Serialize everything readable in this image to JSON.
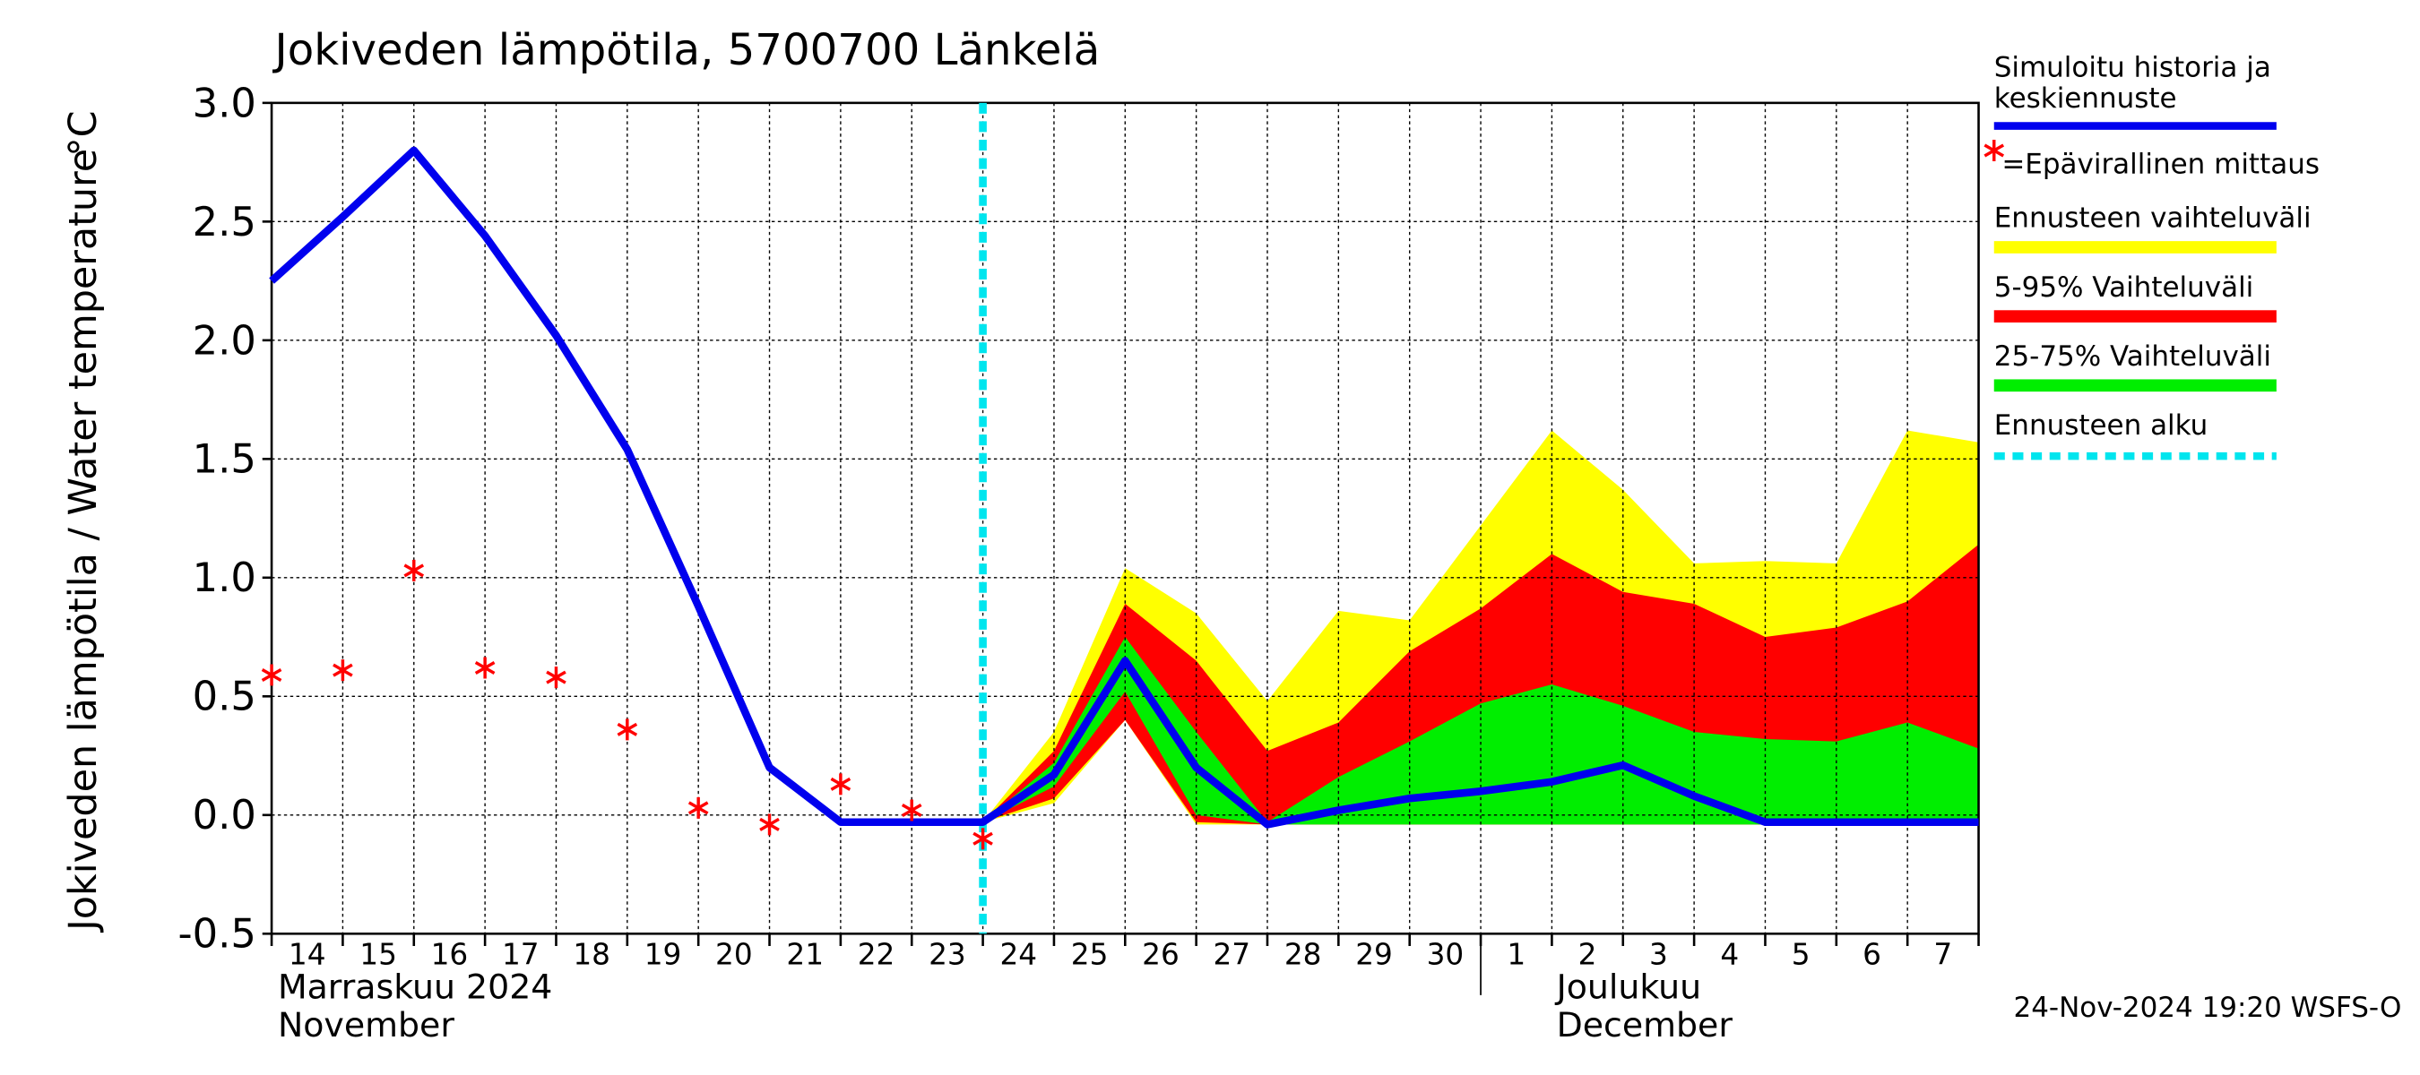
{
  "chart_data": {
    "type": "line",
    "title": "Jokiveden lämpötila, 5700700 Länkelä",
    "y_label": "Jokiveden lämpötila / Water temperature",
    "y_unit": "°C",
    "categories": [
      "14",
      "15",
      "16",
      "17",
      "18",
      "19",
      "20",
      "21",
      "22",
      "23",
      "24",
      "25",
      "26",
      "27",
      "28",
      "29",
      "30",
      "1",
      "2",
      "3",
      "4",
      "5",
      "6",
      "7",
      null
    ],
    "months": [
      {
        "at": "14",
        "lines": [
          "Marraskuu 2024",
          "November"
        ]
      },
      {
        "at": "1",
        "lines": [
          "Joulukuu",
          "December"
        ]
      }
    ],
    "ylim": [
      -0.5,
      3.0
    ],
    "yticks": [
      -0.5,
      {
        "value": 0,
        "label": "0.0"
      },
      0.5,
      {
        "value": 1,
        "label": "1.0"
      },
      1.5,
      {
        "value": 2,
        "label": "2.0"
      },
      2.5,
      {
        "value": 3,
        "label": "3.0"
      }
    ],
    "grid": true,
    "bands": [
      {
        "name": "Ennusteen vaihteluväli",
        "color": "#ffff00",
        "upper": [
          null,
          null,
          null,
          null,
          null,
          null,
          null,
          null,
          null,
          null,
          -0.03,
          0.35,
          1.04,
          0.85,
          0.48,
          0.86,
          0.82,
          1.22,
          1.62,
          1.37,
          1.06,
          1.07,
          1.06,
          1.62,
          1.57
        ],
        "lower": [
          null,
          null,
          null,
          null,
          null,
          null,
          null,
          null,
          null,
          null,
          -0.03,
          0.05,
          0.4,
          -0.04,
          -0.04,
          -0.04,
          -0.04,
          -0.04,
          -0.04,
          -0.04,
          -0.04,
          -0.04,
          -0.04,
          -0.04,
          -0.04
        ]
      },
      {
        "name": "5-95% Vaihteluväli",
        "color": "#ff0000",
        "upper": [
          null,
          null,
          null,
          null,
          null,
          null,
          null,
          null,
          null,
          null,
          -0.03,
          0.27,
          0.89,
          0.65,
          0.27,
          0.39,
          0.69,
          0.87,
          1.1,
          0.94,
          0.89,
          0.75,
          0.79,
          0.9,
          1.14
        ],
        "lower": [
          null,
          null,
          null,
          null,
          null,
          null,
          null,
          null,
          null,
          null,
          -0.03,
          0.07,
          0.4,
          -0.03,
          -0.04,
          -0.04,
          -0.04,
          -0.04,
          -0.04,
          -0.04,
          -0.04,
          -0.04,
          -0.04,
          -0.04,
          -0.04
        ]
      },
      {
        "name": "25-75% Vaihteluväli",
        "color": "#00ee00",
        "upper": [
          null,
          null,
          null,
          null,
          null,
          null,
          null,
          null,
          null,
          null,
          -0.03,
          0.22,
          0.75,
          0.35,
          -0.03,
          0.16,
          0.31,
          0.47,
          0.55,
          0.46,
          0.35,
          0.32,
          0.31,
          0.39,
          0.28
        ],
        "lower": [
          null,
          null,
          null,
          null,
          null,
          null,
          null,
          null,
          null,
          null,
          -0.03,
          0.12,
          0.52,
          0.0,
          -0.04,
          -0.04,
          -0.04,
          -0.04,
          -0.04,
          -0.04,
          -0.04,
          -0.04,
          -0.04,
          -0.04,
          -0.04
        ]
      }
    ],
    "series": [
      {
        "name": [
          "Simuloitu historia ja",
          "keskiennuste"
        ],
        "color": "#0000ee",
        "values": [
          2.25,
          2.52,
          2.8,
          2.44,
          2.02,
          1.54,
          0.88,
          0.2,
          -0.03,
          -0.03,
          -0.03,
          0.17,
          0.65,
          0.2,
          -0.04,
          0.02,
          0.07,
          0.1,
          0.14,
          0.21,
          0.08,
          -0.03,
          -0.03,
          -0.03,
          -0.03
        ]
      },
      {
        "name": "=Epävirallinen mittaus",
        "color": "#ff0000",
        "marker": "asterisk",
        "values": [
          0.59,
          0.61,
          1.03,
          0.62,
          0.58,
          0.36,
          0.03,
          -0.04,
          0.13,
          0.02,
          -0.1,
          null,
          null,
          null,
          null,
          null,
          null,
          null,
          null,
          null,
          null,
          null,
          null,
          null,
          null
        ]
      }
    ],
    "forecast_start": {
      "name": "Ennusteen alku",
      "at": "24",
      "color": "#00e5ee"
    },
    "timestamp": "24-Nov-2024 19:20 WSFS-O"
  }
}
